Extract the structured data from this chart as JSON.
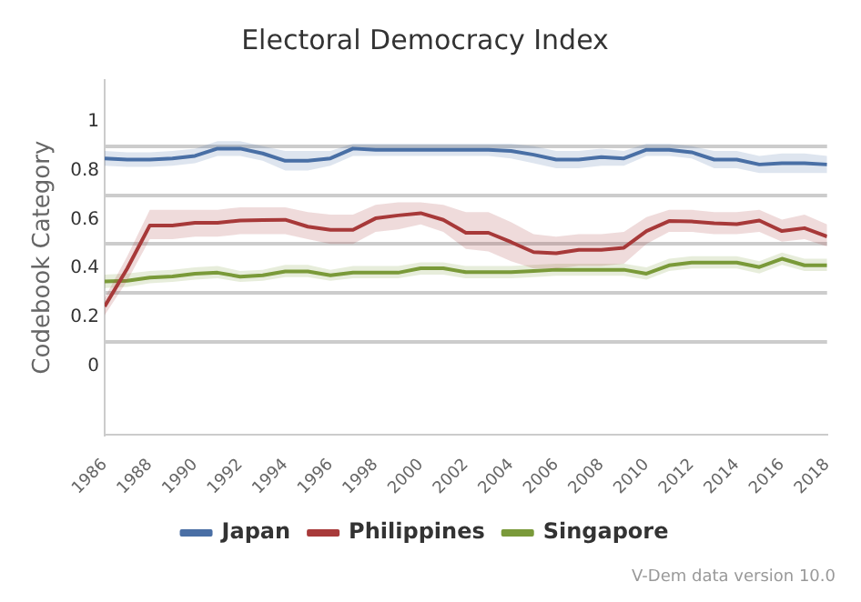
{
  "chart_data": {
    "type": "line",
    "title": "Electoral Democracy Index",
    "ylabel": "Codebook Category",
    "x": [
      1986,
      1987,
      1988,
      1989,
      1990,
      1991,
      1992,
      1993,
      1994,
      1995,
      1996,
      1997,
      1998,
      1999,
      2000,
      2001,
      2002,
      2003,
      2004,
      2005,
      2006,
      2007,
      2008,
      2009,
      2010,
      2011,
      2012,
      2013,
      2014,
      2015,
      2016,
      2017,
      2018
    ],
    "series": [
      {
        "name": "Japan",
        "color": "#4a6fa5",
        "values": [
          0.85,
          0.845,
          0.845,
          0.85,
          0.86,
          0.89,
          0.89,
          0.87,
          0.84,
          0.84,
          0.85,
          0.89,
          0.885,
          0.885,
          0.885,
          0.885,
          0.885,
          0.885,
          0.88,
          0.865,
          0.845,
          0.845,
          0.855,
          0.85,
          0.885,
          0.885,
          0.875,
          0.845,
          0.845,
          0.825,
          0.83,
          0.83,
          0.825
        ],
        "lower": [
          0.82,
          0.815,
          0.815,
          0.82,
          0.83,
          0.86,
          0.86,
          0.84,
          0.8,
          0.8,
          0.82,
          0.86,
          0.86,
          0.86,
          0.86,
          0.86,
          0.86,
          0.86,
          0.85,
          0.83,
          0.81,
          0.81,
          0.82,
          0.82,
          0.86,
          0.86,
          0.85,
          0.81,
          0.81,
          0.79,
          0.79,
          0.79,
          0.79
        ],
        "upper": [
          0.88,
          0.875,
          0.875,
          0.88,
          0.89,
          0.92,
          0.92,
          0.9,
          0.88,
          0.88,
          0.88,
          0.91,
          0.91,
          0.91,
          0.91,
          0.91,
          0.91,
          0.91,
          0.91,
          0.9,
          0.88,
          0.88,
          0.89,
          0.88,
          0.91,
          0.91,
          0.9,
          0.88,
          0.88,
          0.86,
          0.87,
          0.87,
          0.86
        ]
      },
      {
        "name": "Philippines",
        "color": "#a83a3a",
        "values": [
          0.245,
          0.4,
          0.576,
          0.576,
          0.587,
          0.587,
          0.596,
          0.598,
          0.599,
          0.571,
          0.558,
          0.558,
          0.605,
          0.617,
          0.626,
          0.599,
          0.546,
          0.546,
          0.508,
          0.467,
          0.462,
          0.476,
          0.476,
          0.485,
          0.553,
          0.594,
          0.592,
          0.585,
          0.581,
          0.596,
          0.553,
          0.565,
          0.531
        ],
        "lower": [
          0.21,
          0.35,
          0.52,
          0.52,
          0.53,
          0.53,
          0.54,
          0.54,
          0.54,
          0.52,
          0.5,
          0.5,
          0.55,
          0.56,
          0.58,
          0.55,
          0.48,
          0.47,
          0.43,
          0.4,
          0.4,
          0.41,
          0.41,
          0.42,
          0.5,
          0.55,
          0.55,
          0.54,
          0.54,
          0.55,
          0.51,
          0.52,
          0.49
        ],
        "upper": [
          0.28,
          0.45,
          0.64,
          0.64,
          0.64,
          0.64,
          0.65,
          0.65,
          0.65,
          0.63,
          0.62,
          0.62,
          0.66,
          0.67,
          0.67,
          0.66,
          0.63,
          0.63,
          0.59,
          0.54,
          0.53,
          0.54,
          0.54,
          0.55,
          0.61,
          0.64,
          0.64,
          0.63,
          0.63,
          0.64,
          0.6,
          0.62,
          0.58
        ]
      },
      {
        "name": "Singapore",
        "color": "#7a9a3a",
        "values": [
          0.347,
          0.35,
          0.363,
          0.368,
          0.379,
          0.383,
          0.367,
          0.372,
          0.388,
          0.388,
          0.372,
          0.383,
          0.383,
          0.383,
          0.401,
          0.401,
          0.385,
          0.385,
          0.385,
          0.39,
          0.395,
          0.395,
          0.395,
          0.395,
          0.379,
          0.413,
          0.424,
          0.424,
          0.424,
          0.406,
          0.44,
          0.413,
          0.413
        ],
        "lower": [
          0.32,
          0.325,
          0.34,
          0.345,
          0.355,
          0.36,
          0.345,
          0.35,
          0.365,
          0.365,
          0.35,
          0.36,
          0.36,
          0.36,
          0.375,
          0.375,
          0.36,
          0.36,
          0.36,
          0.365,
          0.37,
          0.37,
          0.37,
          0.37,
          0.355,
          0.39,
          0.4,
          0.4,
          0.4,
          0.38,
          0.415,
          0.39,
          0.39
        ],
        "upper": [
          0.375,
          0.38,
          0.39,
          0.395,
          0.405,
          0.41,
          0.39,
          0.395,
          0.415,
          0.415,
          0.395,
          0.41,
          0.41,
          0.41,
          0.425,
          0.425,
          0.41,
          0.41,
          0.41,
          0.415,
          0.42,
          0.42,
          0.42,
          0.42,
          0.405,
          0.44,
          0.45,
          0.45,
          0.45,
          0.43,
          0.465,
          0.44,
          0.44
        ]
      }
    ],
    "xlim": [
      1986,
      2018
    ],
    "xticks": [
      1986,
      1988,
      1990,
      1992,
      1994,
      1996,
      1998,
      2000,
      2002,
      2004,
      2006,
      2008,
      2010,
      2012,
      2014,
      2016,
      2018
    ],
    "ylim": [
      -0.28,
      1.17
    ],
    "yticks": [
      0,
      0.2,
      0.4,
      0.6,
      0.8,
      1,
      {
        "value": 0.1,
        "label": null
      },
      {
        "value": 0.3,
        "label": null
      },
      {
        "value": 0.5,
        "label": null
      },
      {
        "value": 0.7,
        "label": null
      },
      {
        "value": 0.9,
        "label": null
      }
    ],
    "grid": "y",
    "legend": "bottom",
    "marker": "none",
    "line_style": "solid",
    "annotations": [
      "V-Dem data version 10.0"
    ]
  }
}
